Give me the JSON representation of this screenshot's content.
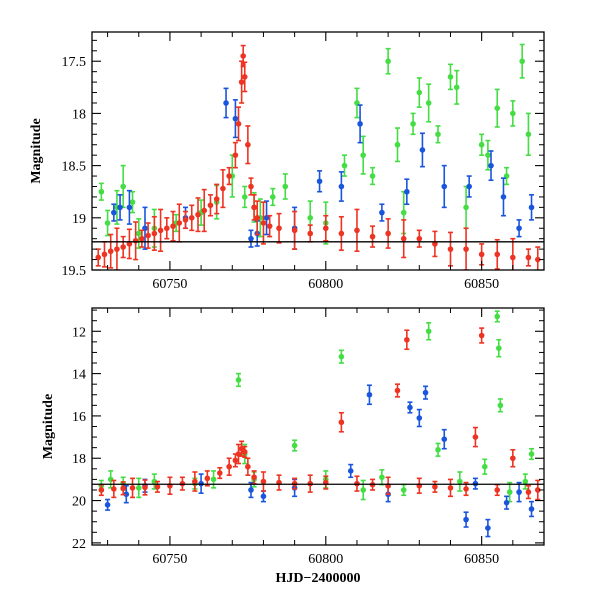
{
  "chart_data": [
    {
      "type": "scatter",
      "title": "",
      "xlabel": "",
      "ylabel": "Magnitude",
      "xlim": [
        60725,
        60870
      ],
      "ylim": [
        19.5,
        17.22
      ],
      "y_inverted": true,
      "x_ticks": [
        60750,
        60800,
        60850
      ],
      "x_tick_labels": [
        "60750",
        "60800",
        "60850"
      ],
      "y_ticks": [
        17.5,
        18,
        18.5,
        19,
        19.5
      ],
      "y_tick_labels": [
        "17.5",
        "18",
        "18.5",
        "19",
        "19.5"
      ],
      "reference_line_y": 19.23,
      "grid": false,
      "legend": "none",
      "series": [
        {
          "color": "#44dd44",
          "x": [
            60728,
            60730,
            60733,
            60735,
            60738,
            60740,
            60745,
            60752,
            60760,
            60765,
            60770,
            60774,
            60777,
            60779,
            60783,
            60787,
            60795,
            60800,
            60806,
            60810,
            60812,
            60815,
            60820,
            60823,
            60825,
            60828,
            60830,
            60833,
            60836,
            60840,
            60842,
            60845,
            60850,
            60852,
            60855,
            60858,
            60860,
            60863,
            60865
          ],
          "y": [
            18.75,
            19.05,
            18.9,
            18.7,
            18.85,
            19.15,
            19.1,
            19.05,
            18.95,
            18.85,
            18.6,
            18.8,
            18.9,
            19.0,
            18.8,
            18.7,
            19.0,
            19.05,
            18.5,
            17.9,
            18.4,
            18.6,
            17.5,
            18.3,
            18.95,
            18.1,
            17.8,
            17.9,
            18.2,
            17.65,
            17.75,
            18.9,
            18.3,
            18.4,
            17.95,
            18.6,
            18.0,
            17.5,
            18.2
          ]
        },
        {
          "color": "#1a55dd",
          "x": [
            60732,
            60734,
            60737,
            60742,
            60755,
            60768,
            60771,
            60776,
            60778,
            60781,
            60790,
            60798,
            60805,
            60811,
            60818,
            60826,
            60831,
            60838,
            60846,
            60853,
            60857,
            60862,
            60866
          ],
          "y": [
            18.95,
            18.9,
            18.9,
            19.1,
            19.0,
            17.9,
            18.05,
            19.2,
            19.15,
            19.0,
            19.1,
            18.65,
            18.7,
            18.1,
            18.95,
            18.75,
            18.35,
            18.7,
            18.7,
            18.5,
            18.8,
            19.1,
            18.9
          ]
        },
        {
          "color": "#ee3322",
          "x": [
            60727,
            60729,
            60731,
            60733,
            60735,
            60737,
            60739,
            60741,
            60743,
            60745,
            60747,
            60749,
            60751,
            60753,
            60755,
            60757,
            60759,
            60761,
            60763,
            60765,
            60767,
            60769,
            60771,
            60772,
            60773,
            60773.5,
            60774,
            60775,
            60776,
            60777,
            60778,
            60780,
            60782,
            60785,
            60790,
            60795,
            60800,
            60805,
            60810,
            60815,
            60820,
            60825,
            60830,
            60835,
            60840,
            60845,
            60850,
            60855,
            60860,
            60865,
            60868
          ],
          "y": [
            19.38,
            19.35,
            19.32,
            19.3,
            19.28,
            19.25,
            19.22,
            19.2,
            19.17,
            19.15,
            19.12,
            19.1,
            19.08,
            19.05,
            19.02,
            19.0,
            18.97,
            18.93,
            18.88,
            18.82,
            18.72,
            18.6,
            18.4,
            18.1,
            17.7,
            17.45,
            17.65,
            18.3,
            18.7,
            18.9,
            19.0,
            19.05,
            19.08,
            19.1,
            19.12,
            19.15,
            19.1,
            19.15,
            19.12,
            19.18,
            19.15,
            19.2,
            19.2,
            19.25,
            19.3,
            19.3,
            19.35,
            19.35,
            19.38,
            19.38,
            19.4
          ]
        }
      ]
    },
    {
      "type": "scatter",
      "title": "",
      "xlabel": "HJD−2400000",
      "ylabel": "Magnitude",
      "xlim": [
        60725,
        60870
      ],
      "ylim": [
        22.1,
        10.9
      ],
      "y_inverted": true,
      "x_ticks": [
        60750,
        60800,
        60850
      ],
      "x_tick_labels": [
        "60750",
        "60800",
        "60850"
      ],
      "y_ticks": [
        12,
        14,
        16,
        18,
        20,
        22
      ],
      "y_tick_labels": [
        "12",
        "14",
        "16",
        "18",
        "20",
        "22"
      ],
      "reference_line_y": 19.23,
      "grid": false,
      "legend": "none",
      "series": [
        {
          "color": "#44dd44",
          "x": [
            60728,
            60731,
            60735,
            60740,
            60745,
            60758,
            60764,
            60772,
            60774,
            60777,
            60790,
            60800,
            60805,
            60812,
            60818,
            60825,
            60833,
            60836,
            60843,
            60851,
            60855,
            60855.5,
            60856,
            60859,
            60864,
            60866
          ],
          "y": [
            19.3,
            19.0,
            19.2,
            19.4,
            19.1,
            19.2,
            19.0,
            14.3,
            17.8,
            19.0,
            17.4,
            19.0,
            13.2,
            19.5,
            18.9,
            19.5,
            12.0,
            17.6,
            19.1,
            18.4,
            11.3,
            12.8,
            15.5,
            19.6,
            19.1,
            17.8
          ]
        },
        {
          "color": "#1a55dd",
          "x": [
            60730,
            60736,
            60742,
            60760,
            60776,
            60780,
            60790,
            60808,
            60814,
            60820,
            60827,
            60830,
            60832,
            60838,
            60845,
            60848,
            60852,
            60858,
            60862,
            60866
          ],
          "y": [
            20.2,
            19.7,
            19.3,
            19.2,
            19.5,
            19.8,
            19.4,
            18.6,
            15.0,
            19.7,
            15.6,
            16.1,
            14.9,
            17.1,
            20.9,
            19.2,
            21.3,
            20.1,
            19.6,
            20.4
          ]
        },
        {
          "color": "#ee3322",
          "x": [
            60728,
            60732,
            60735,
            60738,
            60742,
            60746,
            60750,
            60754,
            60758,
            60762,
            60766,
            60769,
            60771,
            60772,
            60773,
            60774,
            60775,
            60777,
            60780,
            60785,
            60790,
            60795,
            60800,
            60805,
            60810,
            60815,
            60820,
            60823,
            60826,
            60830,
            60835,
            60840,
            60845,
            60848,
            60850,
            60855,
            60860,
            60865,
            60868
          ],
          "y": [
            19.5,
            19.45,
            19.42,
            19.4,
            19.38,
            19.35,
            19.3,
            19.2,
            19.1,
            18.95,
            18.7,
            18.4,
            18.1,
            17.8,
            17.55,
            17.7,
            18.4,
            18.9,
            19.1,
            19.15,
            19.2,
            19.2,
            19.15,
            16.3,
            19.2,
            19.25,
            19.3,
            14.8,
            12.4,
            19.3,
            19.35,
            19.4,
            19.45,
            17.0,
            12.2,
            19.5,
            18.0,
            19.6,
            19.5
          ]
        }
      ]
    }
  ]
}
